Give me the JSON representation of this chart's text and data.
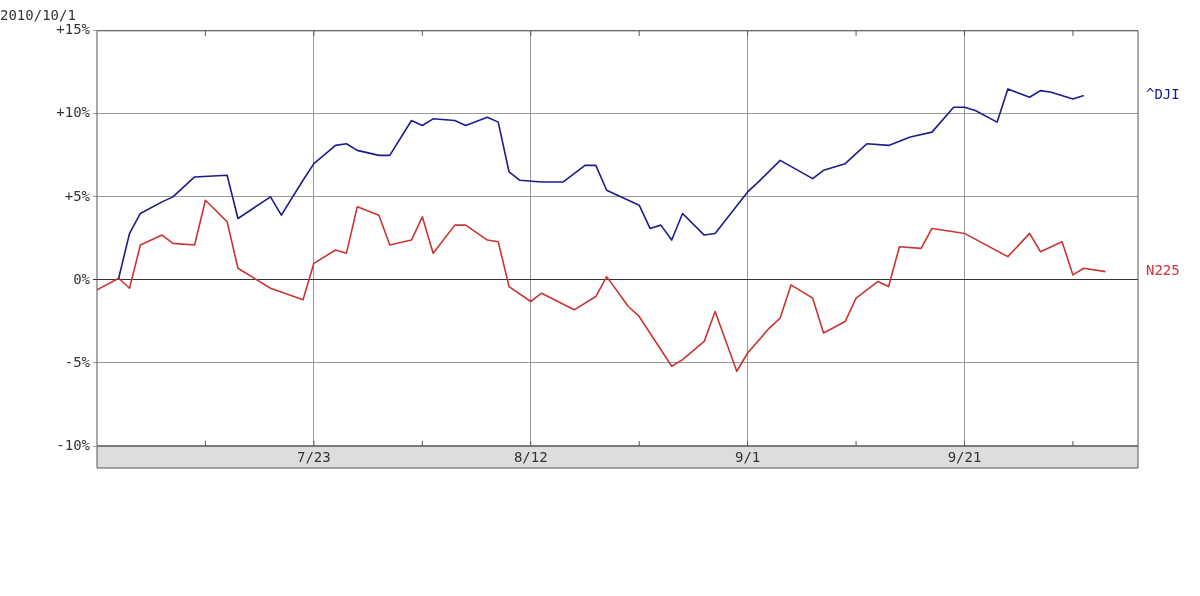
{
  "chart_data": {
    "type": "line",
    "title": "2010/10/1",
    "xlim": [
      "2010-07-03",
      "2010-10-07"
    ],
    "xticks": [
      {
        "value": "2010-07-13",
        "label": null
      },
      {
        "value": "2010-07-23",
        "label": "7/23"
      },
      {
        "value": "2010-08-02",
        "label": null
      },
      {
        "value": "2010-08-12",
        "label": "8/12"
      },
      {
        "value": "2010-08-22",
        "label": null
      },
      {
        "value": "2010-09-01",
        "label": "9/1"
      },
      {
        "value": "2010-09-11",
        "label": null
      },
      {
        "value": "2010-09-21",
        "label": "9/21"
      },
      {
        "value": "2010-10-01",
        "label": null
      }
    ],
    "ylim": [
      -10,
      15
    ],
    "yticks": [
      {
        "value": -10,
        "label": "-10%"
      },
      {
        "value": -5,
        "label": "-5%"
      },
      {
        "value": 0,
        "label": "0%"
      },
      {
        "value": 5,
        "label": "+5%"
      },
      {
        "value": 10,
        "label": "+10%"
      },
      {
        "value": 15,
        "label": "+15%"
      }
    ],
    "grid": true,
    "legend": false,
    "marker": "none",
    "line_style": "solid",
    "series": [
      {
        "name": "^DJI",
        "color": "#1c1c8c",
        "x": [
          "2010-07-05",
          "2010-07-06",
          "2010-07-07",
          "2010-07-09",
          "2010-07-10",
          "2010-07-12",
          "2010-07-15",
          "2010-07-16",
          "2010-07-19",
          "2010-07-20",
          "2010-07-22",
          "2010-07-23",
          "2010-07-25",
          "2010-07-26",
          "2010-07-27",
          "2010-07-29",
          "2010-07-30",
          "2010-08-01",
          "2010-08-02",
          "2010-08-03",
          "2010-08-05",
          "2010-08-06",
          "2010-08-08",
          "2010-08-09",
          "2010-08-10",
          "2010-08-11",
          "2010-08-13",
          "2010-08-15",
          "2010-08-17",
          "2010-08-18",
          "2010-08-19",
          "2010-08-22",
          "2010-08-23",
          "2010-08-24",
          "2010-08-25",
          "2010-08-26",
          "2010-08-28",
          "2010-08-29",
          "2010-09-01",
          "2010-09-02",
          "2010-09-04",
          "2010-09-07",
          "2010-09-08",
          "2010-09-10",
          "2010-09-11",
          "2010-09-12",
          "2010-09-14",
          "2010-09-16",
          "2010-09-18",
          "2010-09-20",
          "2010-09-21",
          "2010-09-22",
          "2010-09-24",
          "2010-09-25",
          "2010-09-27",
          "2010-09-28",
          "2010-09-29",
          "2010-10-01",
          "2010-10-02"
        ],
        "values": [
          0.1,
          2.8,
          4.0,
          4.7,
          5.0,
          6.2,
          6.3,
          3.7,
          5.0,
          3.9,
          6.0,
          7.0,
          8.1,
          8.2,
          7.8,
          7.5,
          7.5,
          9.6,
          9.3,
          9.7,
          9.6,
          9.3,
          9.8,
          9.5,
          6.5,
          6.0,
          5.9,
          5.9,
          6.9,
          6.9,
          5.4,
          4.5,
          3.1,
          3.3,
          2.4,
          4.0,
          2.7,
          2.8,
          5.3,
          5.9,
          7.2,
          6.1,
          6.6,
          7.0,
          7.6,
          8.2,
          8.1,
          8.6,
          8.9,
          10.4,
          10.4,
          10.2,
          9.5,
          11.5,
          11.0,
          11.4,
          11.3,
          10.9,
          11.1
        ]
      },
      {
        "name": "N225",
        "color": "#cc3333",
        "x": [
          "2010-07-03",
          "2010-07-05",
          "2010-07-06",
          "2010-07-07",
          "2010-07-09",
          "2010-07-10",
          "2010-07-12",
          "2010-07-13",
          "2010-07-15",
          "2010-07-16",
          "2010-07-19",
          "2010-07-22",
          "2010-07-23",
          "2010-07-25",
          "2010-07-26",
          "2010-07-27",
          "2010-07-29",
          "2010-07-30",
          "2010-08-01",
          "2010-08-02",
          "2010-08-03",
          "2010-08-05",
          "2010-08-06",
          "2010-08-08",
          "2010-08-09",
          "2010-08-10",
          "2010-08-12",
          "2010-08-13",
          "2010-08-16",
          "2010-08-18",
          "2010-08-19",
          "2010-08-21",
          "2010-08-22",
          "2010-08-25",
          "2010-08-26",
          "2010-08-28",
          "2010-08-29",
          "2010-08-31",
          "2010-09-01",
          "2010-09-03",
          "2010-09-04",
          "2010-09-05",
          "2010-09-07",
          "2010-09-08",
          "2010-09-10",
          "2010-09-11",
          "2010-09-13",
          "2010-09-14",
          "2010-09-15",
          "2010-09-17",
          "2010-09-18",
          "2010-09-20",
          "2010-09-21",
          "2010-09-25",
          "2010-09-27",
          "2010-09-28",
          "2010-09-30",
          "2010-10-01",
          "2010-10-02",
          "2010-10-04"
        ],
        "values": [
          -0.6,
          0.1,
          -0.5,
          2.1,
          2.7,
          2.2,
          2.1,
          4.8,
          3.5,
          0.7,
          -0.5,
          -1.2,
          1.0,
          1.8,
          1.6,
          4.4,
          3.9,
          2.1,
          2.4,
          3.8,
          1.6,
          3.3,
          3.3,
          2.4,
          2.3,
          -0.4,
          -1.3,
          -0.8,
          -1.8,
          -1.0,
          0.2,
          -1.6,
          -2.2,
          -5.2,
          -4.8,
          -3.7,
          -1.9,
          -5.5,
          -4.4,
          -2.9,
          -2.3,
          -0.3,
          -1.1,
          -3.2,
          -2.5,
          -1.1,
          -0.1,
          -0.4,
          2.0,
          1.9,
          3.1,
          2.9,
          2.8,
          1.4,
          2.8,
          1.7,
          2.3,
          0.3,
          0.7,
          0.5
        ]
      }
    ]
  }
}
